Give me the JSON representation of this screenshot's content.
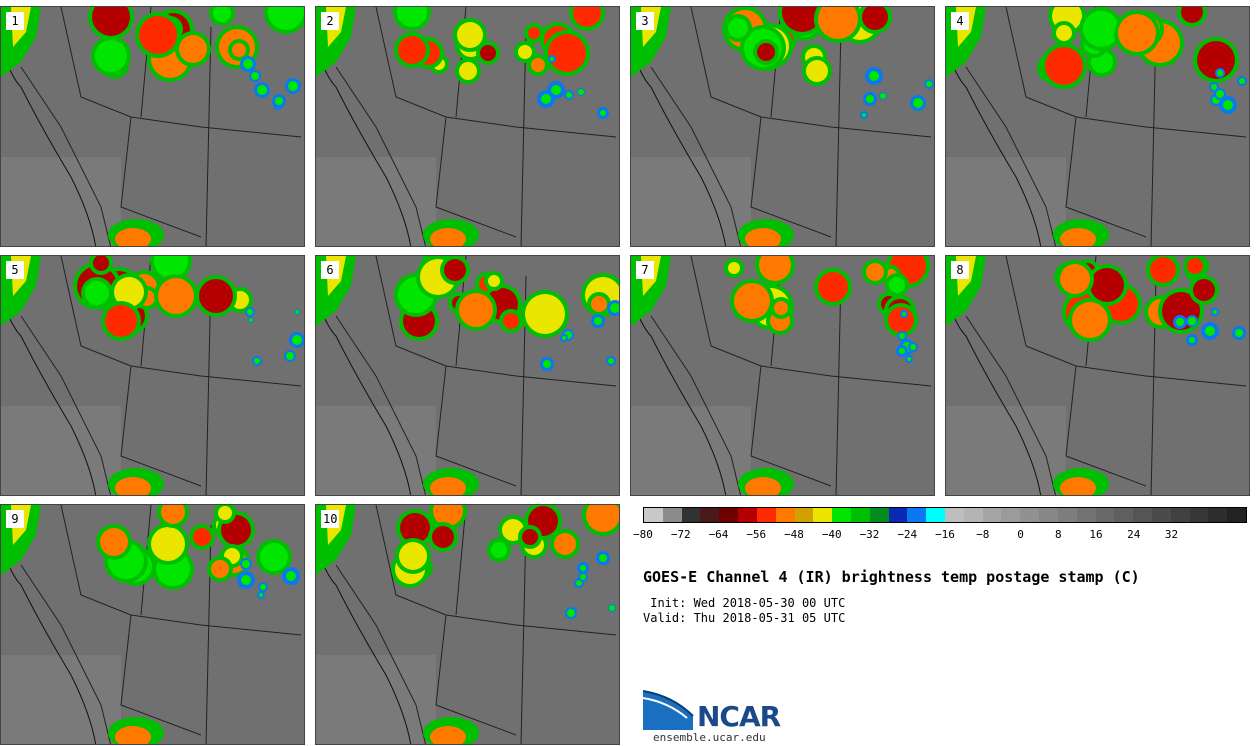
{
  "panels": [
    {
      "label": "1"
    },
    {
      "label": "2"
    },
    {
      "label": "3"
    },
    {
      "label": "4"
    },
    {
      "label": "5"
    },
    {
      "label": "6"
    },
    {
      "label": "7"
    },
    {
      "label": "8"
    },
    {
      "label": "9"
    },
    {
      "label": "10"
    }
  ],
  "colorbar": {
    "colors": [
      "#c8c8c8",
      "#8c8c8c",
      "#323232",
      "#4a1a1a",
      "#6e0000",
      "#b40000",
      "#ff2a00",
      "#ff7800",
      "#d2a000",
      "#ebe600",
      "#00e600",
      "#00be00",
      "#008c1e",
      "#0a28b4",
      "#0a78f0",
      "#00ffff",
      "#bebebe",
      "#b4b4b4",
      "#a5a5a5",
      "#9b9b9b",
      "#919191",
      "#878787",
      "#7d7d7d",
      "#737373",
      "#696969",
      "#5f5f5f",
      "#555555",
      "#4b4b4b",
      "#414141",
      "#373737",
      "#2d2d2d",
      "#232323"
    ],
    "tick_labels": [
      "−80",
      "−72",
      "−64",
      "−56",
      "−48",
      "−40",
      "−32",
      "−24",
      "−16",
      "−8",
      "0",
      "8",
      "16",
      "24",
      "32"
    ]
  },
  "title": "GOES-E Channel 4 (IR) brightness temp postage stamp (C)",
  "init_line": " Init: Wed 2018-05-30 00 UTC",
  "valid_line": "Valid: Thu 2018-05-31 05 UTC",
  "logo": {
    "text": "NCAR",
    "url": "ensemble.ucar.edu"
  }
}
